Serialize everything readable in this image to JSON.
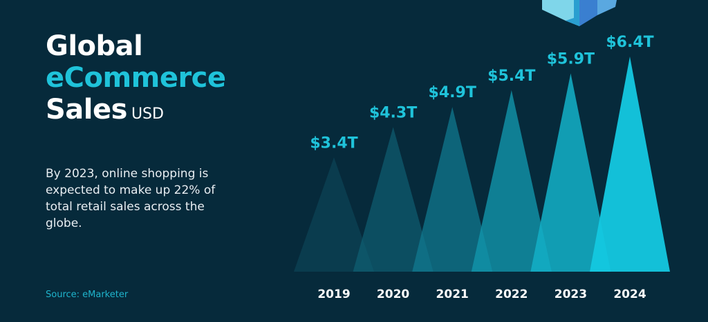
{
  "title": {
    "line1": "Global",
    "line2": "eCommerce",
    "line3": "Sales",
    "unit": "USD"
  },
  "description": "By 2023, online shopping is expected to make up 22% of total retail sales across the globe.",
  "source": "Source: eMarketer",
  "colors": {
    "background": "#062a3b",
    "accent": "#1fc3da",
    "bar_gradient": [
      "#0f4a5e",
      "#14c8e0"
    ]
  },
  "chart_data": {
    "type": "bar",
    "categories": [
      "2019",
      "2020",
      "2021",
      "2022",
      "2023",
      "2024"
    ],
    "series": [
      {
        "values": [
          3.4,
          4.3,
          4.9,
          5.4,
          5.9,
          6.4
        ]
      }
    ],
    "data_labels": [
      "$3.4T",
      "$4.3T",
      "$4.9T",
      "$5.4T",
      "$5.9T",
      "$6.4T"
    ],
    "ylabel": "USD",
    "grid": false,
    "legend": "none"
  }
}
